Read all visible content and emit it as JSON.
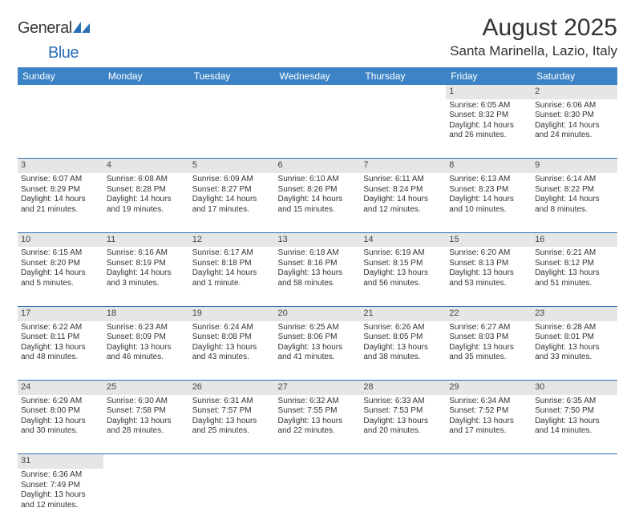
{
  "brand": {
    "part1": "General",
    "part2": "Blue"
  },
  "title": "August 2025",
  "location": "Santa Marinella, Lazio, Italy",
  "colors": {
    "header_bg": "#3d84c6",
    "header_text": "#ffffff",
    "daynum_bg": "#e6e6e6",
    "rule": "#2a6fb5",
    "text": "#333333",
    "brand_blue": "#2a6fb5"
  },
  "weekdays": [
    "Sunday",
    "Monday",
    "Tuesday",
    "Wednesday",
    "Thursday",
    "Friday",
    "Saturday"
  ],
  "weeks": [
    [
      null,
      null,
      null,
      null,
      null,
      {
        "n": "1",
        "sr": "Sunrise: 6:05 AM",
        "ss": "Sunset: 8:32 PM",
        "d1": "Daylight: 14 hours",
        "d2": "and 26 minutes."
      },
      {
        "n": "2",
        "sr": "Sunrise: 6:06 AM",
        "ss": "Sunset: 8:30 PM",
        "d1": "Daylight: 14 hours",
        "d2": "and 24 minutes."
      }
    ],
    [
      {
        "n": "3",
        "sr": "Sunrise: 6:07 AM",
        "ss": "Sunset: 8:29 PM",
        "d1": "Daylight: 14 hours",
        "d2": "and 21 minutes."
      },
      {
        "n": "4",
        "sr": "Sunrise: 6:08 AM",
        "ss": "Sunset: 8:28 PM",
        "d1": "Daylight: 14 hours",
        "d2": "and 19 minutes."
      },
      {
        "n": "5",
        "sr": "Sunrise: 6:09 AM",
        "ss": "Sunset: 8:27 PM",
        "d1": "Daylight: 14 hours",
        "d2": "and 17 minutes."
      },
      {
        "n": "6",
        "sr": "Sunrise: 6:10 AM",
        "ss": "Sunset: 8:26 PM",
        "d1": "Daylight: 14 hours",
        "d2": "and 15 minutes."
      },
      {
        "n": "7",
        "sr": "Sunrise: 6:11 AM",
        "ss": "Sunset: 8:24 PM",
        "d1": "Daylight: 14 hours",
        "d2": "and 12 minutes."
      },
      {
        "n": "8",
        "sr": "Sunrise: 6:13 AM",
        "ss": "Sunset: 8:23 PM",
        "d1": "Daylight: 14 hours",
        "d2": "and 10 minutes."
      },
      {
        "n": "9",
        "sr": "Sunrise: 6:14 AM",
        "ss": "Sunset: 8:22 PM",
        "d1": "Daylight: 14 hours",
        "d2": "and 8 minutes."
      }
    ],
    [
      {
        "n": "10",
        "sr": "Sunrise: 6:15 AM",
        "ss": "Sunset: 8:20 PM",
        "d1": "Daylight: 14 hours",
        "d2": "and 5 minutes."
      },
      {
        "n": "11",
        "sr": "Sunrise: 6:16 AM",
        "ss": "Sunset: 8:19 PM",
        "d1": "Daylight: 14 hours",
        "d2": "and 3 minutes."
      },
      {
        "n": "12",
        "sr": "Sunrise: 6:17 AM",
        "ss": "Sunset: 8:18 PM",
        "d1": "Daylight: 14 hours",
        "d2": "and 1 minute."
      },
      {
        "n": "13",
        "sr": "Sunrise: 6:18 AM",
        "ss": "Sunset: 8:16 PM",
        "d1": "Daylight: 13 hours",
        "d2": "and 58 minutes."
      },
      {
        "n": "14",
        "sr": "Sunrise: 6:19 AM",
        "ss": "Sunset: 8:15 PM",
        "d1": "Daylight: 13 hours",
        "d2": "and 56 minutes."
      },
      {
        "n": "15",
        "sr": "Sunrise: 6:20 AM",
        "ss": "Sunset: 8:13 PM",
        "d1": "Daylight: 13 hours",
        "d2": "and 53 minutes."
      },
      {
        "n": "16",
        "sr": "Sunrise: 6:21 AM",
        "ss": "Sunset: 8:12 PM",
        "d1": "Daylight: 13 hours",
        "d2": "and 51 minutes."
      }
    ],
    [
      {
        "n": "17",
        "sr": "Sunrise: 6:22 AM",
        "ss": "Sunset: 8:11 PM",
        "d1": "Daylight: 13 hours",
        "d2": "and 48 minutes."
      },
      {
        "n": "18",
        "sr": "Sunrise: 6:23 AM",
        "ss": "Sunset: 8:09 PM",
        "d1": "Daylight: 13 hours",
        "d2": "and 46 minutes."
      },
      {
        "n": "19",
        "sr": "Sunrise: 6:24 AM",
        "ss": "Sunset: 8:08 PM",
        "d1": "Daylight: 13 hours",
        "d2": "and 43 minutes."
      },
      {
        "n": "20",
        "sr": "Sunrise: 6:25 AM",
        "ss": "Sunset: 8:06 PM",
        "d1": "Daylight: 13 hours",
        "d2": "and 41 minutes."
      },
      {
        "n": "21",
        "sr": "Sunrise: 6:26 AM",
        "ss": "Sunset: 8:05 PM",
        "d1": "Daylight: 13 hours",
        "d2": "and 38 minutes."
      },
      {
        "n": "22",
        "sr": "Sunrise: 6:27 AM",
        "ss": "Sunset: 8:03 PM",
        "d1": "Daylight: 13 hours",
        "d2": "and 35 minutes."
      },
      {
        "n": "23",
        "sr": "Sunrise: 6:28 AM",
        "ss": "Sunset: 8:01 PM",
        "d1": "Daylight: 13 hours",
        "d2": "and 33 minutes."
      }
    ],
    [
      {
        "n": "24",
        "sr": "Sunrise: 6:29 AM",
        "ss": "Sunset: 8:00 PM",
        "d1": "Daylight: 13 hours",
        "d2": "and 30 minutes."
      },
      {
        "n": "25",
        "sr": "Sunrise: 6:30 AM",
        "ss": "Sunset: 7:58 PM",
        "d1": "Daylight: 13 hours",
        "d2": "and 28 minutes."
      },
      {
        "n": "26",
        "sr": "Sunrise: 6:31 AM",
        "ss": "Sunset: 7:57 PM",
        "d1": "Daylight: 13 hours",
        "d2": "and 25 minutes."
      },
      {
        "n": "27",
        "sr": "Sunrise: 6:32 AM",
        "ss": "Sunset: 7:55 PM",
        "d1": "Daylight: 13 hours",
        "d2": "and 22 minutes."
      },
      {
        "n": "28",
        "sr": "Sunrise: 6:33 AM",
        "ss": "Sunset: 7:53 PM",
        "d1": "Daylight: 13 hours",
        "d2": "and 20 minutes."
      },
      {
        "n": "29",
        "sr": "Sunrise: 6:34 AM",
        "ss": "Sunset: 7:52 PM",
        "d1": "Daylight: 13 hours",
        "d2": "and 17 minutes."
      },
      {
        "n": "30",
        "sr": "Sunrise: 6:35 AM",
        "ss": "Sunset: 7:50 PM",
        "d1": "Daylight: 13 hours",
        "d2": "and 14 minutes."
      }
    ],
    [
      {
        "n": "31",
        "sr": "Sunrise: 6:36 AM",
        "ss": "Sunset: 7:49 PM",
        "d1": "Daylight: 13 hours",
        "d2": "and 12 minutes."
      },
      null,
      null,
      null,
      null,
      null,
      null
    ]
  ]
}
